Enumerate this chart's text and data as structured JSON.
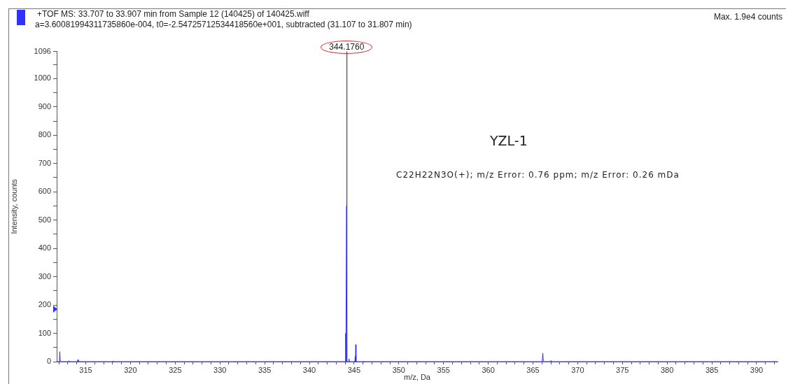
{
  "chart_data": {
    "type": "line",
    "title": "+TOF MS: 33.707 to 33.907 min from Sample 12 (140425) of 140425.wiff",
    "subtitle": "a=3.60081994311735860e-004, t0=-2.54725712534418560e+001, subtracted (31.107 to 31.807 min)",
    "xlabel": "m/z, Da",
    "ylabel": "Intensity, counts",
    "x": [
      311.75,
      312.05,
      312.1,
      312.15,
      313.08,
      313.13,
      313.18,
      314.07,
      314.12,
      314.17,
      317.98,
      318.03,
      318.08,
      343.99,
      344.05,
      344.08,
      344.12,
      344.16,
      344.176,
      344.19,
      344.22,
      344.4,
      344.43,
      344.46,
      345.08,
      345.13,
      345.16,
      345.18,
      345.22,
      346.02,
      346.07,
      346.12,
      366.03,
      366.1,
      366.16,
      366.95,
      367.0,
      367.05,
      392.35
    ],
    "values": [
      0,
      0,
      35,
      0,
      0,
      3,
      0,
      0,
      7,
      0,
      0,
      2,
      0,
      0,
      100,
      0,
      0,
      550,
      1096,
      550,
      0,
      0,
      10,
      0,
      0,
      20,
      0,
      60,
      0,
      0,
      2,
      0,
      0,
      30,
      0,
      0,
      3,
      0,
      0
    ],
    "color": "#3030ff",
    "xlim": [
      311.75,
      392.35
    ],
    "xticks": [
      {
        "value": 312,
        "label": null
      },
      {
        "value": 313,
        "label": null
      },
      {
        "value": 314,
        "label": null
      },
      315,
      {
        "value": 316,
        "label": null
      },
      {
        "value": 317,
        "label": null
      },
      {
        "value": 318,
        "label": null
      },
      {
        "value": 319,
        "label": null
      },
      320,
      {
        "value": 321,
        "label": null
      },
      {
        "value": 322,
        "label": null
      },
      {
        "value": 323,
        "label": null
      },
      {
        "value": 324,
        "label": null
      },
      325,
      {
        "value": 326,
        "label": null
      },
      {
        "value": 327,
        "label": null
      },
      {
        "value": 328,
        "label": null
      },
      {
        "value": 329,
        "label": null
      },
      330,
      {
        "value": 331,
        "label": null
      },
      {
        "value": 332,
        "label": null
      },
      {
        "value": 333,
        "label": null
      },
      {
        "value": 334,
        "label": null
      },
      335,
      {
        "value": 336,
        "label": null
      },
      {
        "value": 337,
        "label": null
      },
      {
        "value": 338,
        "label": null
      },
      {
        "value": 339,
        "label": null
      },
      340,
      {
        "value": 341,
        "label": null
      },
      {
        "value": 342,
        "label": null
      },
      {
        "value": 343,
        "label": null
      },
      {
        "value": 344,
        "label": null
      },
      345,
      {
        "value": 346,
        "label": null
      },
      {
        "value": 347,
        "label": null
      },
      {
        "value": 348,
        "label": null
      },
      {
        "value": 349,
        "label": null
      },
      350,
      {
        "value": 351,
        "label": null
      },
      {
        "value": 352,
        "label": null
      },
      {
        "value": 353,
        "label": null
      },
      {
        "value": 354,
        "label": null
      },
      355,
      {
        "value": 356,
        "label": null
      },
      {
        "value": 357,
        "label": null
      },
      {
        "value": 358,
        "label": null
      },
      {
        "value": 359,
        "label": null
      },
      360,
      {
        "value": 361,
        "label": null
      },
      {
        "value": 362,
        "label": null
      },
      {
        "value": 363,
        "label": null
      },
      {
        "value": 364,
        "label": null
      },
      365,
      {
        "value": 366,
        "label": null
      },
      {
        "value": 367,
        "label": null
      },
      {
        "value": 368,
        "label": null
      },
      {
        "value": 369,
        "label": null
      },
      370,
      {
        "value": 371,
        "label": null
      },
      {
        "value": 372,
        "label": null
      },
      {
        "value": 373,
        "label": null
      },
      {
        "value": 374,
        "label": null
      },
      375,
      {
        "value": 376,
        "label": null
      },
      {
        "value": 377,
        "label": null
      },
      {
        "value": 378,
        "label": null
      },
      {
        "value": 379,
        "label": null
      },
      380,
      {
        "value": 381,
        "label": null
      },
      {
        "value": 382,
        "label": null
      },
      {
        "value": 383,
        "label": null
      },
      {
        "value": 384,
        "label": null
      },
      385,
      {
        "value": 386,
        "label": null
      },
      {
        "value": 387,
        "label": null
      },
      {
        "value": 388,
        "label": null
      },
      {
        "value": 389,
        "label": null
      },
      390,
      {
        "value": 391,
        "label": null
      },
      {
        "value": 392,
        "label": null
      }
    ],
    "ylim": [
      0,
      1096
    ],
    "yticks": [
      0,
      {
        "value": 50,
        "label": null
      },
      100,
      {
        "value": 150,
        "label": null
      },
      200,
      {
        "value": 250,
        "label": null
      },
      300,
      {
        "value": 350,
        "label": null
      },
      400,
      {
        "value": 450,
        "label": null
      },
      500,
      {
        "value": 550,
        "label": null
      },
      600,
      {
        "value": 650,
        "label": null
      },
      700,
      {
        "value": 750,
        "label": null
      },
      800,
      {
        "value": 850,
        "label": null
      },
      900,
      {
        "value": 950,
        "label": null
      },
      1000,
      {
        "value": 1050,
        "label": null
      },
      1096
    ],
    "annotations": [
      "Max. 1.9e4 counts",
      "YZL-1",
      "C22H22N3O(+); m/z Error: 0.76 ppm; m/z Error: 0.26 mDa",
      {
        "text": "344.1760",
        "x": 344.176,
        "y": 1096
      }
    ]
  }
}
